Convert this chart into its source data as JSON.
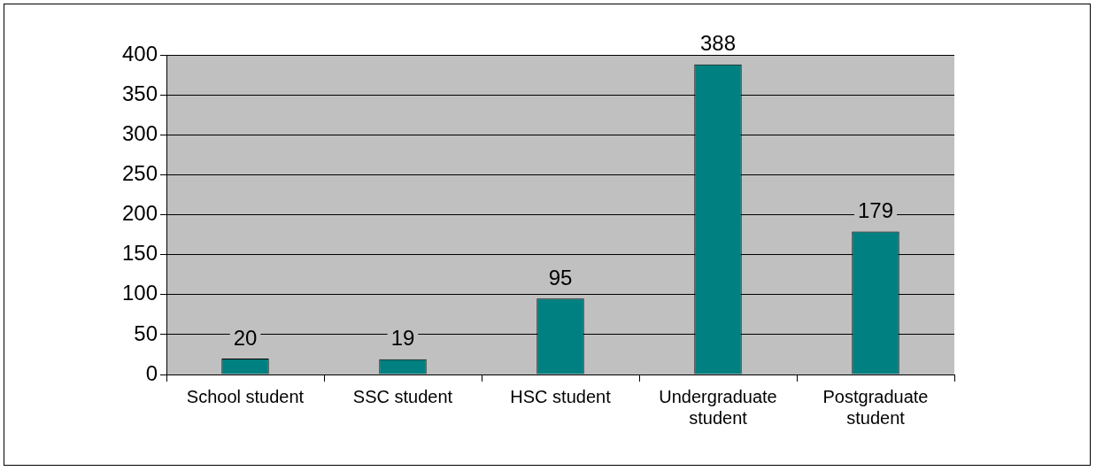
{
  "chart_data": {
    "type": "bar",
    "categories": [
      "School student",
      "SSC student",
      "HSC student",
      "Undergraduate student",
      "Postgraduate student"
    ],
    "values": [
      20,
      19,
      95,
      388,
      179
    ],
    "color": "#008080",
    "ylim": [
      0,
      400
    ],
    "yticks": [
      0,
      50,
      100,
      150,
      200,
      250,
      300,
      350,
      400
    ],
    "grid": "y",
    "data_labels": true
  }
}
